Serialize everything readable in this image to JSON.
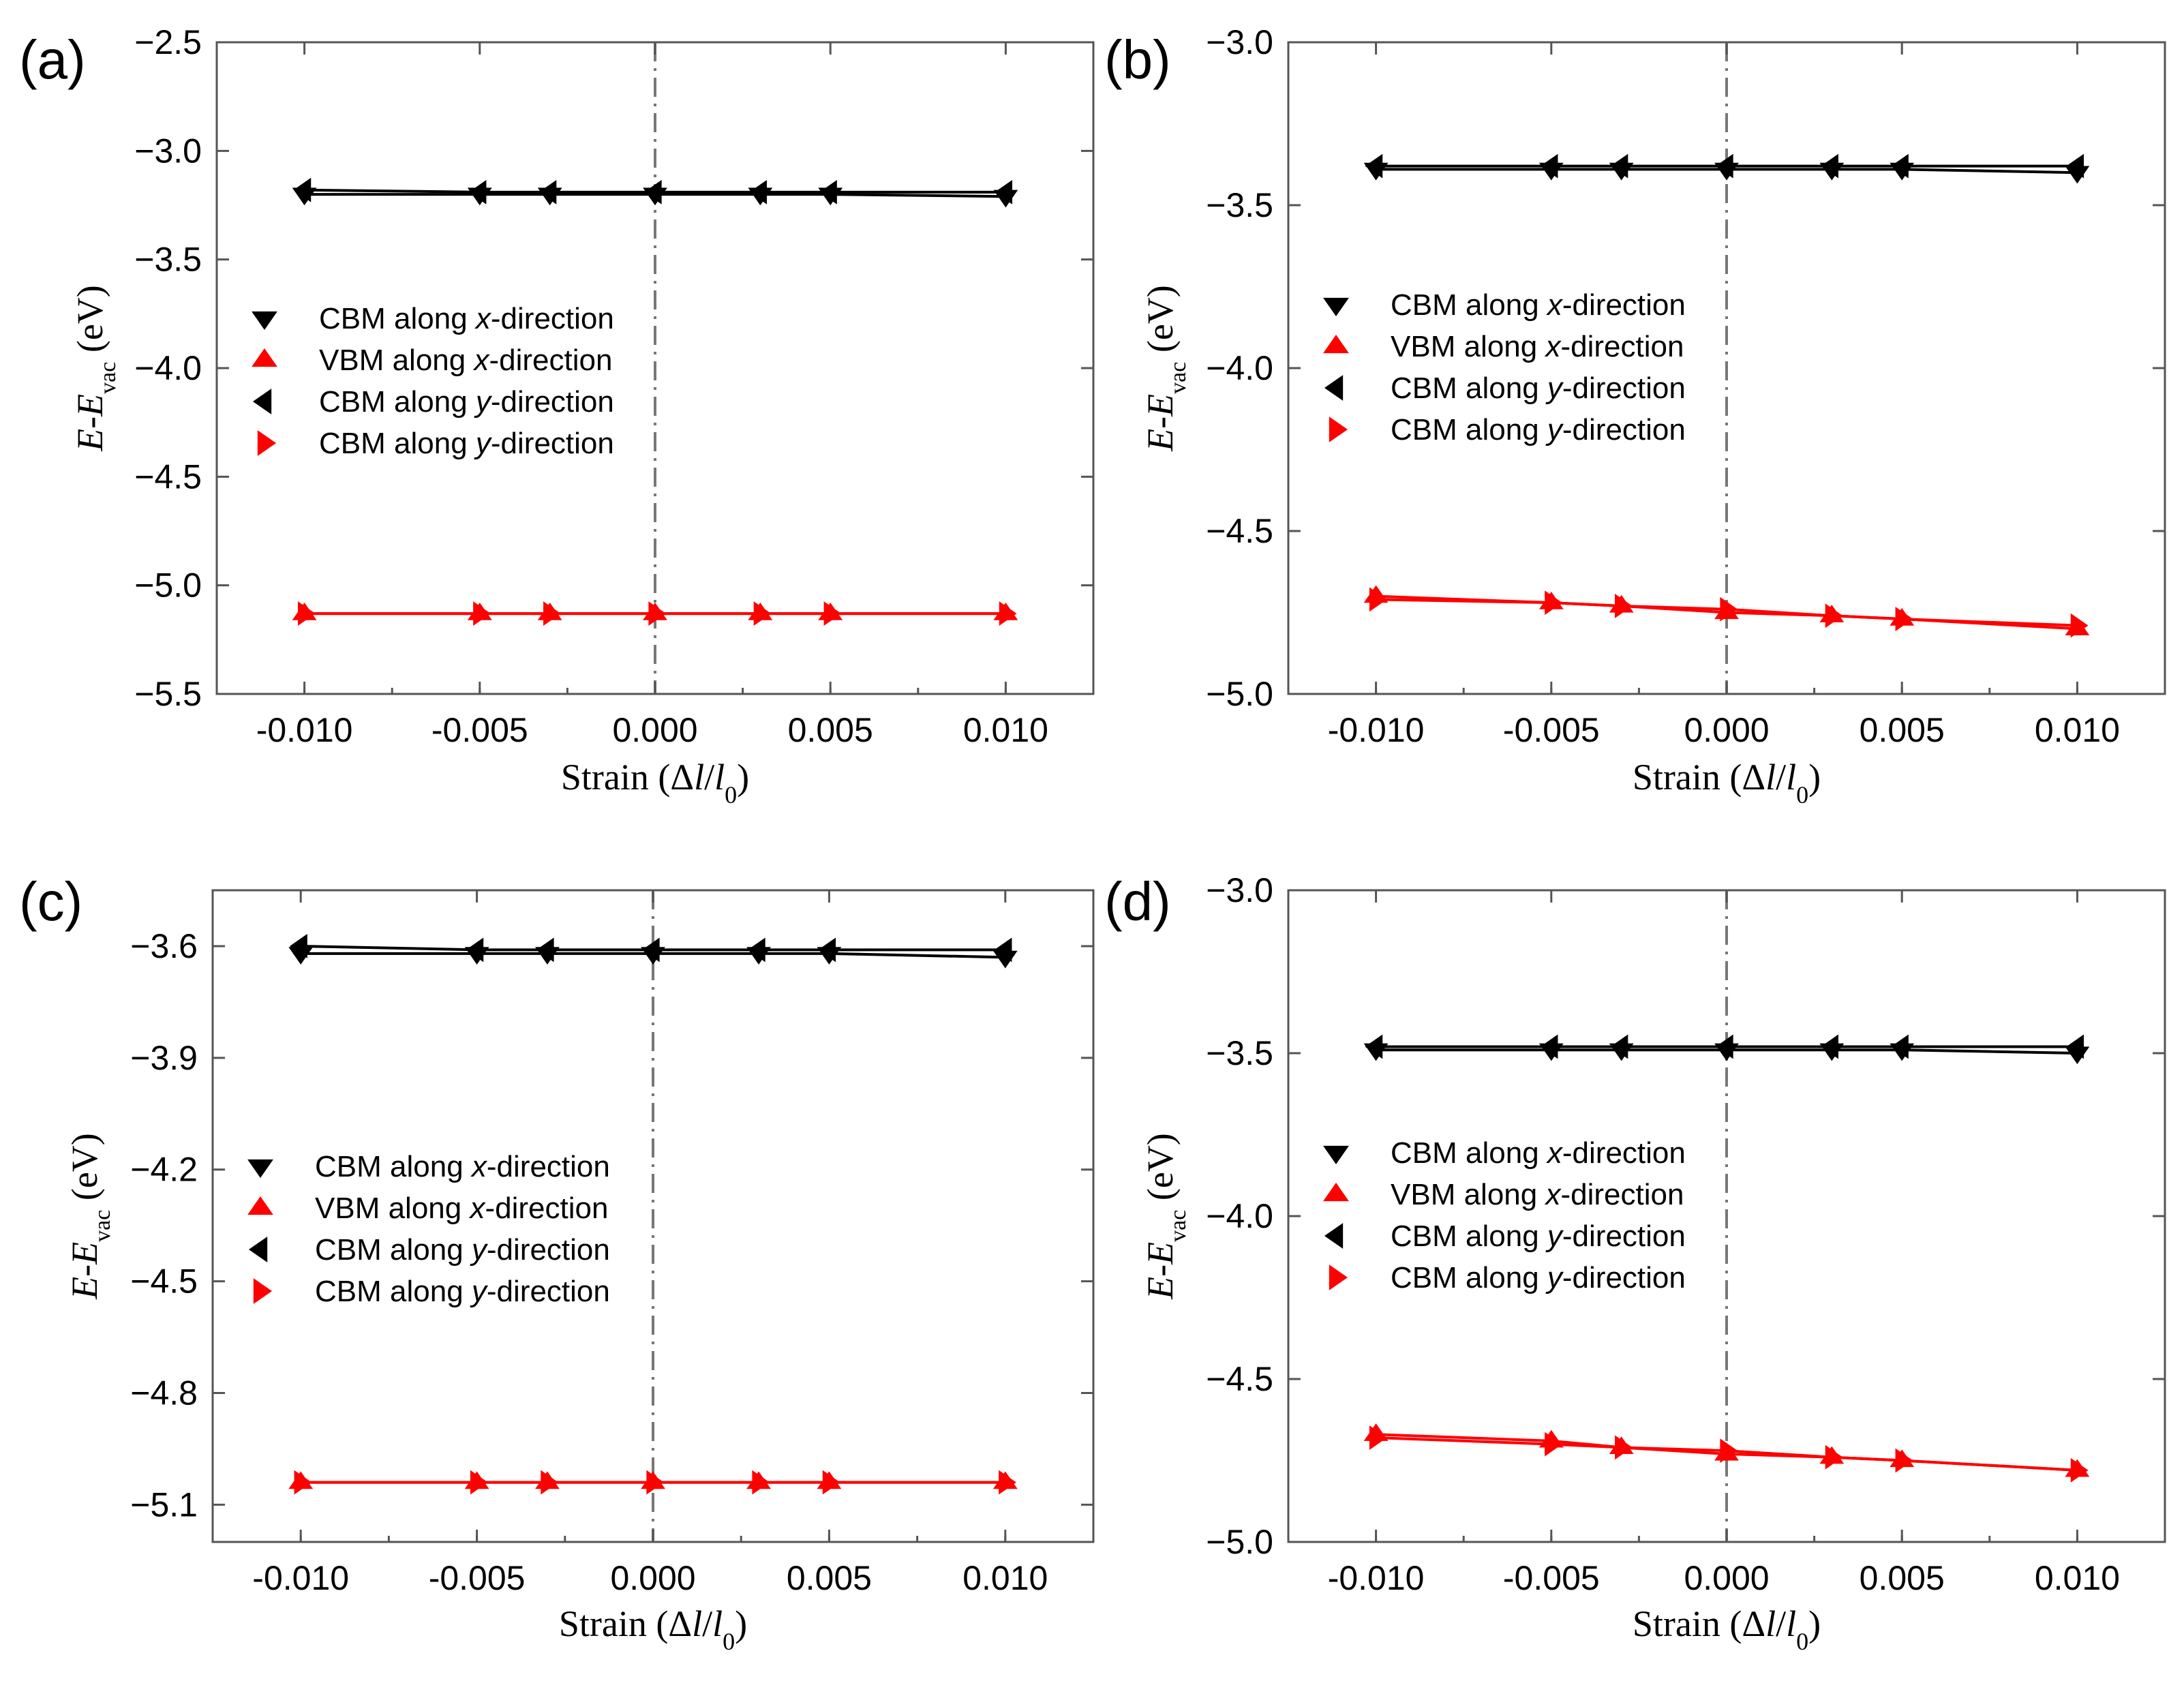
{
  "chart_data": [
    {
      "type": "line",
      "panel_label": "(a)",
      "xlabel": "Strain (Δl/l0)",
      "ylabel": "E-Evac (eV)",
      "x_ticks": [
        "-0.010",
        "-0.005",
        "0.000",
        "0.005",
        "0.010"
      ],
      "y_ticks": [
        "-2.5",
        "-3.0",
        "-3.5",
        "-4.0",
        "-4.5",
        "-5.0",
        "-5.5"
      ],
      "xlim": [
        -0.0125,
        0.0125
      ],
      "ylim": [
        -5.5,
        -2.5
      ],
      "x": [
        -0.01,
        -0.005,
        -0.003,
        0.0,
        0.003,
        0.005,
        0.01
      ],
      "series": [
        {
          "name": "CBM along x-direction",
          "marker": "triangle-down",
          "color": "#000000",
          "values": [
            -3.2,
            -3.2,
            -3.2,
            -3.2,
            -3.2,
            -3.2,
            -3.21
          ]
        },
        {
          "name": "VBM along x-direction",
          "marker": "triangle-up",
          "color": "#ff0000",
          "values": [
            -5.13,
            -5.13,
            -5.13,
            -5.13,
            -5.13,
            -5.13,
            -5.13
          ]
        },
        {
          "name": "CBM along y-direction",
          "marker": "triangle-left",
          "color": "#000000",
          "values": [
            -3.18,
            -3.19,
            -3.19,
            -3.19,
            -3.19,
            -3.19,
            -3.19
          ]
        },
        {
          "name": "CBM along y-direction",
          "marker": "triangle-right",
          "color": "#ff0000",
          "values": [
            -5.13,
            -5.13,
            -5.13,
            -5.13,
            -5.13,
            -5.13,
            -5.13
          ]
        }
      ]
    },
    {
      "type": "line",
      "panel_label": "(b)",
      "xlabel": "Strain (Δl/l0)",
      "ylabel": "E-Evac (eV)",
      "x_ticks": [
        "-0.010",
        "-0.005",
        "0.000",
        "0.005",
        "0.010"
      ],
      "y_ticks": [
        "-3.0",
        "-3.5",
        "-4.0",
        "-4.5",
        "-5.0"
      ],
      "xlim": [
        -0.0125,
        0.0125
      ],
      "ylim": [
        -5.0,
        -3.0
      ],
      "x": [
        -0.01,
        -0.005,
        -0.003,
        0.0,
        0.003,
        0.005,
        0.01
      ],
      "series": [
        {
          "name": "CBM along x-direction",
          "marker": "triangle-down",
          "color": "#000000",
          "values": [
            -3.39,
            -3.39,
            -3.39,
            -3.39,
            -3.39,
            -3.39,
            -3.4
          ]
        },
        {
          "name": "VBM along x-direction",
          "marker": "triangle-up",
          "color": "#ff0000",
          "values": [
            -4.7,
            -4.72,
            -4.73,
            -4.75,
            -4.76,
            -4.77,
            -4.8
          ]
        },
        {
          "name": "CBM along y-direction",
          "marker": "triangle-left",
          "color": "#000000",
          "values": [
            -3.38,
            -3.38,
            -3.38,
            -3.38,
            -3.38,
            -3.38,
            -3.38
          ]
        },
        {
          "name": "CBM along y-direction",
          "marker": "triangle-right",
          "color": "#ff0000",
          "values": [
            -4.71,
            -4.72,
            -4.73,
            -4.74,
            -4.76,
            -4.77,
            -4.79
          ]
        }
      ]
    },
    {
      "type": "line",
      "panel_label": "(c)",
      "xlabel": "Strain (Δl/l0)",
      "ylabel": "E-Evac (eV)",
      "x_ticks": [
        "-0.010",
        "-0.005",
        "0.000",
        "0.005",
        "0.010"
      ],
      "y_ticks": [
        "-3.6",
        "-3.9",
        "-4.2",
        "-4.5",
        "-4.8",
        "-5.1"
      ],
      "xlim": [
        -0.0125,
        0.0125
      ],
      "ylim": [
        -5.2,
        -3.45
      ],
      "x": [
        -0.01,
        -0.005,
        -0.003,
        0.0,
        0.003,
        0.005,
        0.01
      ],
      "series": [
        {
          "name": "CBM along x-direction",
          "marker": "triangle-down",
          "color": "#000000",
          "values": [
            -3.62,
            -3.62,
            -3.62,
            -3.62,
            -3.62,
            -3.62,
            -3.63
          ]
        },
        {
          "name": "VBM along x-direction",
          "marker": "triangle-up",
          "color": "#ff0000",
          "values": [
            -5.04,
            -5.04,
            -5.04,
            -5.04,
            -5.04,
            -5.04,
            -5.04
          ]
        },
        {
          "name": "CBM along y-direction",
          "marker": "triangle-left",
          "color": "#000000",
          "values": [
            -3.6,
            -3.61,
            -3.61,
            -3.61,
            -3.61,
            -3.61,
            -3.61
          ]
        },
        {
          "name": "CBM along y-direction",
          "marker": "triangle-right",
          "color": "#ff0000",
          "values": [
            -5.04,
            -5.04,
            -5.04,
            -5.04,
            -5.04,
            -5.04,
            -5.04
          ]
        }
      ]
    },
    {
      "type": "line",
      "panel_label": "(d)",
      "xlabel": "Strain (Δl/l0)",
      "ylabel": "E-Evac (eV)",
      "x_ticks": [
        "-0.010",
        "-0.005",
        "0.000",
        "0.005",
        "0.010"
      ],
      "y_ticks": [
        "-3.0",
        "-3.5",
        "-4.0",
        "-4.5",
        "-5.0"
      ],
      "xlim": [
        -0.0125,
        0.0125
      ],
      "ylim": [
        -5.0,
        -3.0
      ],
      "x": [
        -0.01,
        -0.005,
        -0.003,
        0.0,
        0.003,
        0.005,
        0.01
      ],
      "series": [
        {
          "name": "CBM along x-direction",
          "marker": "triangle-down",
          "color": "#000000",
          "values": [
            -3.49,
            -3.49,
            -3.49,
            -3.49,
            -3.49,
            -3.49,
            -3.5
          ]
        },
        {
          "name": "VBM along x-direction",
          "marker": "triangle-up",
          "color": "#ff0000",
          "values": [
            -4.67,
            -4.69,
            -4.71,
            -4.73,
            -4.74,
            -4.75,
            -4.78
          ]
        },
        {
          "name": "CBM along y-direction",
          "marker": "triangle-left",
          "color": "#000000",
          "values": [
            -3.48,
            -3.48,
            -3.48,
            -3.48,
            -3.48,
            -3.48,
            -3.48
          ]
        },
        {
          "name": "CBM along y-direction",
          "marker": "triangle-right",
          "color": "#ff0000",
          "values": [
            -4.68,
            -4.7,
            -4.71,
            -4.72,
            -4.74,
            -4.75,
            -4.78
          ]
        }
      ]
    }
  ]
}
